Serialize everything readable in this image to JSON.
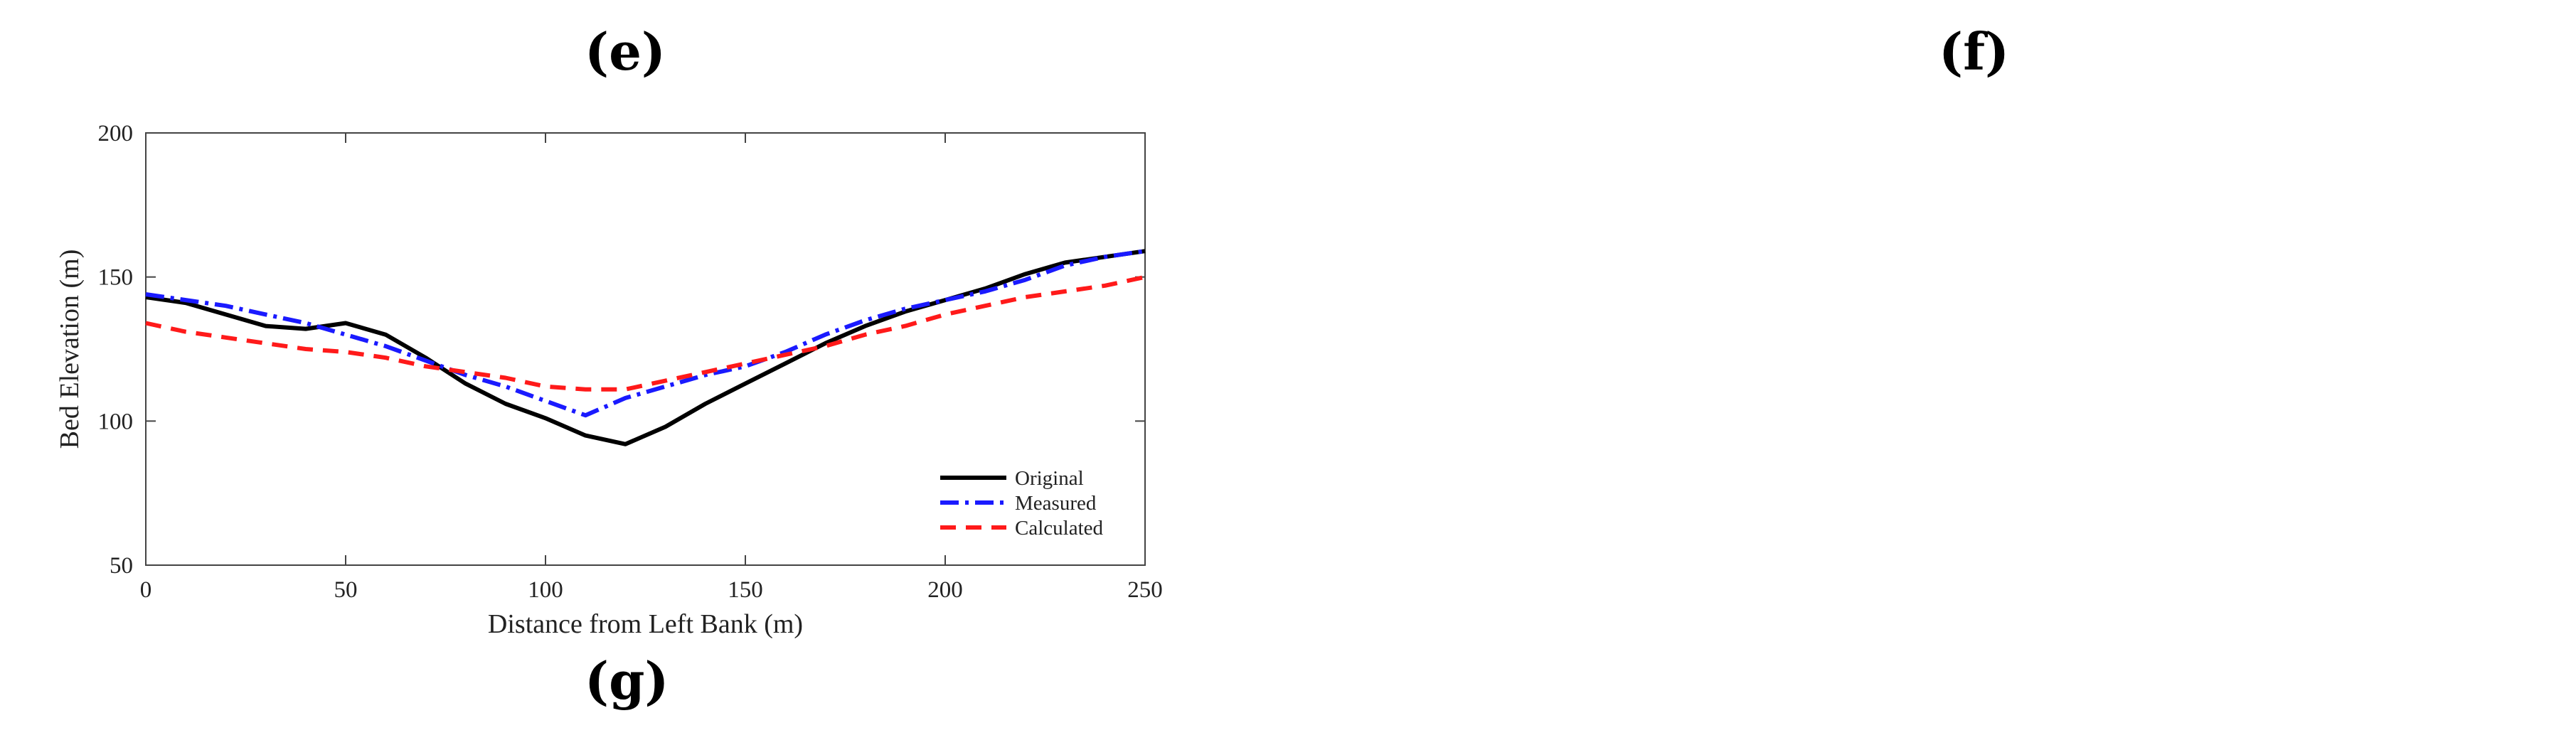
{
  "panels": {
    "e": "(e)",
    "f": "(f)",
    "g": "(g)"
  },
  "chart_data": {
    "type": "line",
    "title": "",
    "xlabel": "Distance from Left Bank (m)",
    "ylabel": "Bed Elevation (m)",
    "xlim": [
      0,
      250
    ],
    "ylim": [
      50,
      200
    ],
    "xticks": [
      0,
      50,
      100,
      150,
      200,
      250
    ],
    "yticks": [
      50,
      100,
      150,
      200
    ],
    "grid": false,
    "legend_position": "bottom-right",
    "series": [
      {
        "name": "Original",
        "color": "#000000",
        "style": "solid",
        "x": [
          0,
          10,
          20,
          30,
          40,
          50,
          60,
          70,
          80,
          90,
          100,
          110,
          120,
          130,
          140,
          150,
          160,
          170,
          180,
          190,
          200,
          210,
          220,
          230,
          240,
          250
        ],
        "y": [
          143,
          141,
          137,
          133,
          132,
          134,
          130,
          122,
          113,
          106,
          101,
          95,
          92,
          98,
          106,
          113,
          120,
          127,
          133,
          138,
          142,
          146,
          151,
          155,
          157,
          159
        ]
      },
      {
        "name": "Measured",
        "color": "#1a1aff",
        "style": "dashdot",
        "x": [
          0,
          10,
          20,
          30,
          40,
          50,
          60,
          70,
          80,
          90,
          100,
          110,
          120,
          130,
          140,
          150,
          160,
          170,
          180,
          190,
          200,
          210,
          220,
          230,
          240,
          250
        ],
        "y": [
          144,
          142,
          140,
          137,
          134,
          130,
          126,
          121,
          116,
          112,
          107,
          102,
          108,
          112,
          116,
          119,
          124,
          130,
          135,
          139,
          142,
          145,
          149,
          154,
          157,
          159
        ]
      },
      {
        "name": "Calculated",
        "color": "#ff1a1a",
        "style": "dashed",
        "x": [
          0,
          10,
          20,
          30,
          40,
          50,
          60,
          70,
          80,
          90,
          100,
          110,
          120,
          130,
          140,
          150,
          160,
          170,
          180,
          190,
          200,
          210,
          220,
          230,
          240,
          250
        ],
        "y": [
          134,
          131,
          129,
          127,
          125,
          124,
          122,
          119,
          117,
          115,
          112,
          111,
          111,
          114,
          117,
          120,
          123,
          126,
          130,
          133,
          137,
          140,
          143,
          145,
          147,
          150
        ]
      }
    ]
  }
}
